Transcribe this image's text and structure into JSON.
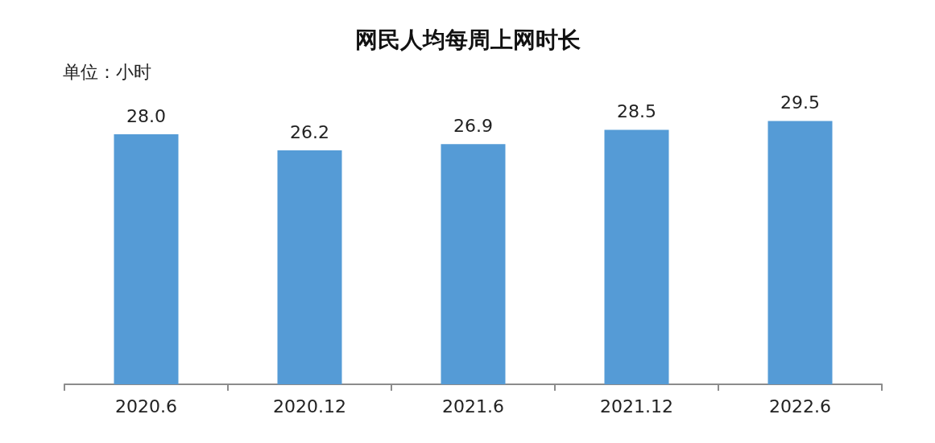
{
  "chart_data": {
    "type": "bar",
    "title": "网民人均每周上网时长",
    "ylabel": "单位：小时",
    "categories": [
      "2020.6",
      "2020.12",
      "2021.6",
      "2021.12",
      "2022.6"
    ],
    "values": [
      28.0,
      26.2,
      26.9,
      28.5,
      29.5
    ],
    "value_labels": [
      "28.0",
      "26.2",
      "26.9",
      "28.5",
      "29.5"
    ],
    "color": "#559bd6"
  }
}
